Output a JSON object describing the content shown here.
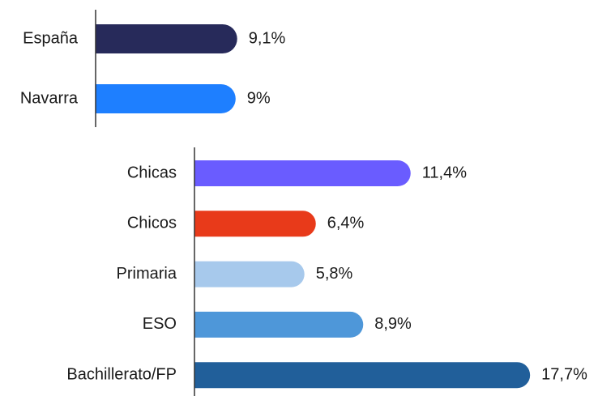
{
  "chart_data": [
    {
      "type": "bar",
      "orientation": "horizontal",
      "categories": [
        "España",
        "Navarra"
      ],
      "values": [
        9.1,
        9
      ],
      "value_labels": [
        "9,1%",
        "9%"
      ],
      "colors": [
        "#272a5a",
        "#1e7fff"
      ]
    },
    {
      "type": "bar",
      "orientation": "horizontal",
      "categories": [
        "Chicas",
        "Chicos",
        "Primaria",
        "ESO",
        "Bachillerato/FP"
      ],
      "values": [
        11.4,
        6.4,
        5.8,
        8.9,
        17.7
      ],
      "value_labels": [
        "11,4%",
        "6,4%",
        "5,8%",
        "8,9%",
        "17,7%"
      ],
      "colors": [
        "#6a5cff",
        "#e83a1a",
        "#a7c9ec",
        "#4e97d9",
        "#215f9a"
      ]
    }
  ]
}
